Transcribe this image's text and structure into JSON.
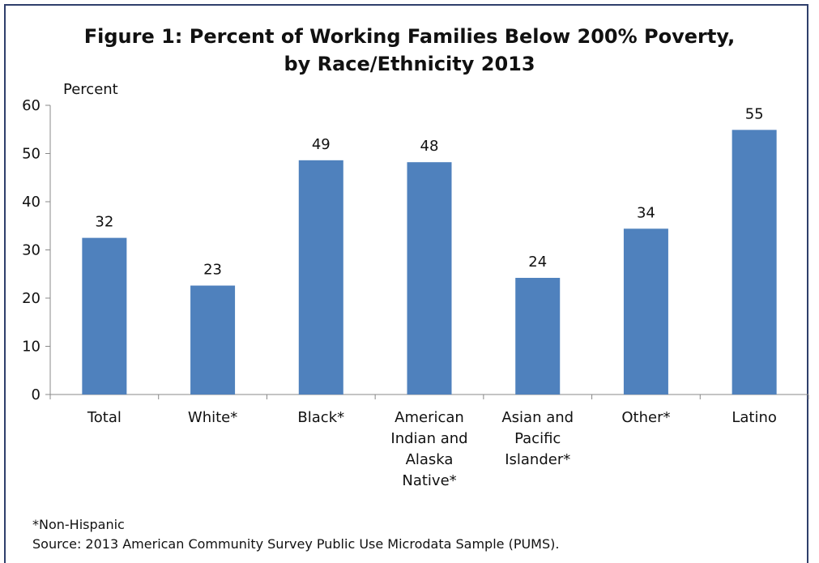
{
  "chart_data": {
    "type": "bar",
    "title_line1": "Figure 1: Percent of Working Families Below 200% Poverty,",
    "title_line2": "by Race/Ethnicity 2013",
    "ylabel": "Percent",
    "xlabel": "",
    "ylim": [
      0,
      60
    ],
    "yticks": [
      "0",
      "10",
      "20",
      "30",
      "40",
      "50",
      "60"
    ],
    "grid": false,
    "categories": [
      [
        "Total"
      ],
      [
        "White*"
      ],
      [
        "Black*"
      ],
      [
        "American",
        "Indian and",
        "Alaska",
        "Native*"
      ],
      [
        "Asian and",
        "Pacific",
        "Islander*"
      ],
      [
        "Other*"
      ],
      [
        "Latino"
      ]
    ],
    "values": [
      32.5,
      22.6,
      48.6,
      48.2,
      24.2,
      34.4,
      54.9
    ],
    "data_labels": [
      "32",
      "23",
      "49",
      "48",
      "24",
      "34",
      "55"
    ],
    "bar_color": "#4f81bd"
  },
  "notes": {
    "non_hispanic": "*Non-Hispanic",
    "source": "Source: 2013 American Community Survey Public Use Microdata Sample (PUMS)."
  }
}
